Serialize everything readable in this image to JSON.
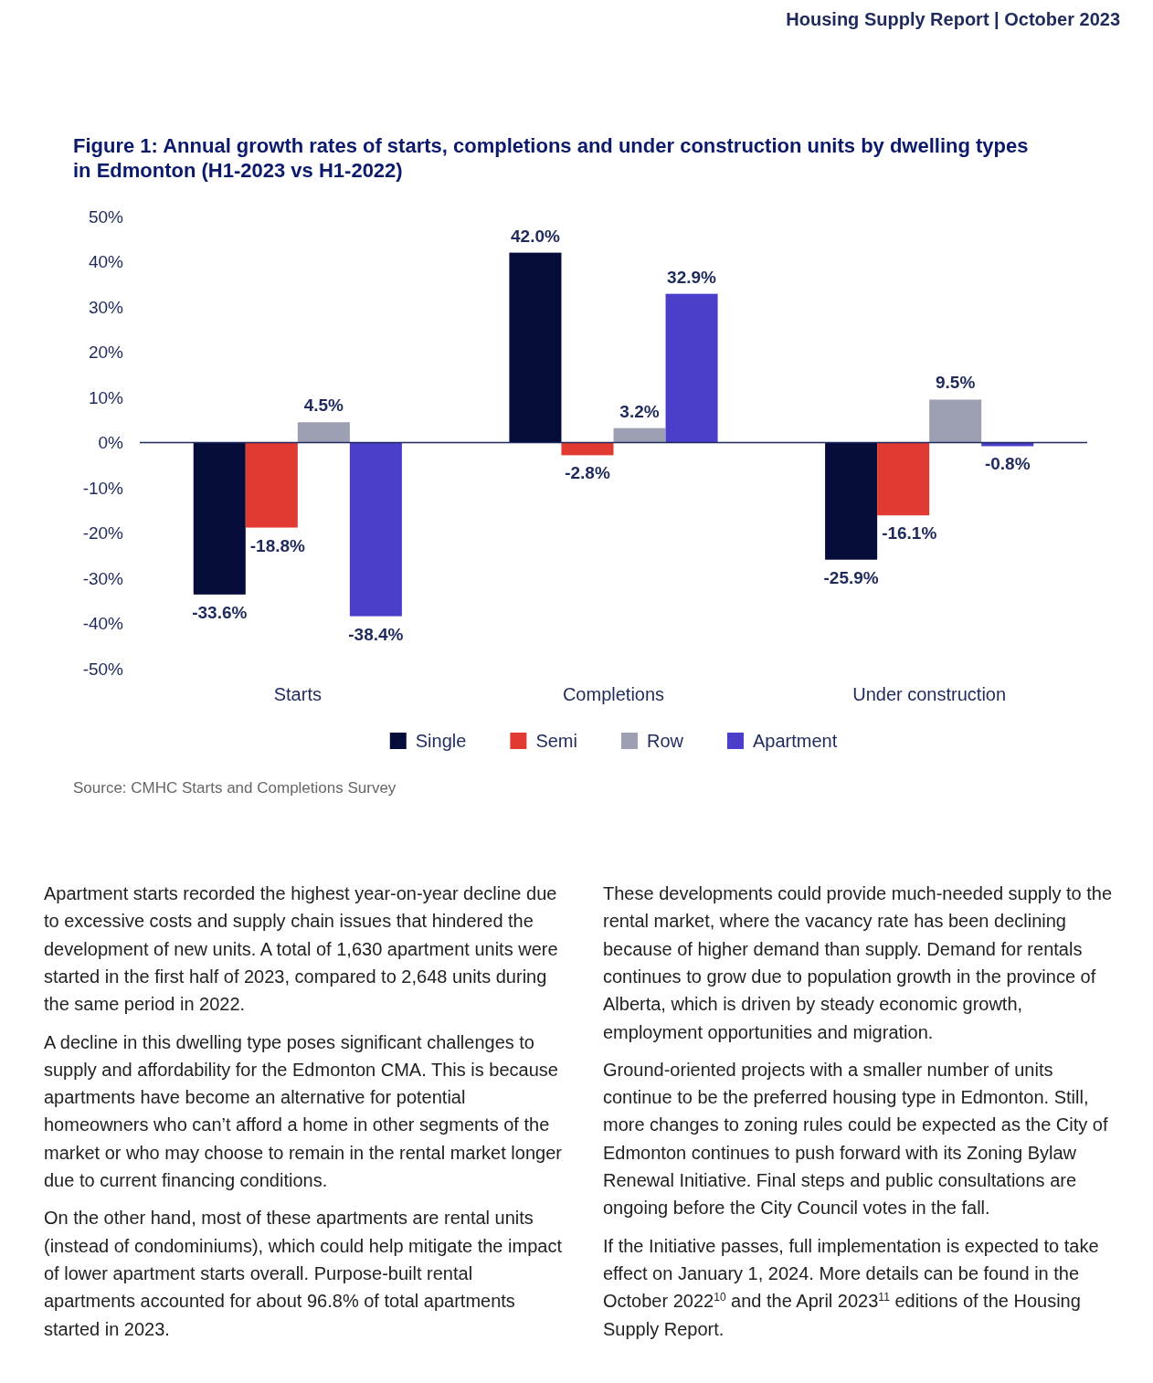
{
  "chart_data": {
    "type": "bar",
    "title": "Figure 1: Annual growth rates of starts, completions and under construction units by dwelling types in Edmonton (H1-2023 vs H1-2022)",
    "categories": [
      "Starts",
      "Completions",
      "Under construction"
    ],
    "series": [
      {
        "name": "Single",
        "color": "#050c3a",
        "values": [
          -33.6,
          42.0,
          -25.9
        ],
        "value_labels": [
          "-33.6%",
          "42.0%",
          "-25.9%"
        ]
      },
      {
        "name": "Semi",
        "color": "#e03a33",
        "values": [
          -18.8,
          -2.8,
          -16.1
        ],
        "value_labels": [
          "-18.8%",
          "-2.8%",
          "-16.1%"
        ]
      },
      {
        "name": "Row",
        "color": "#9d9fb3",
        "values": [
          4.5,
          3.2,
          9.5
        ],
        "value_labels": [
          "4.5%",
          "3.2%",
          "9.5%"
        ]
      },
      {
        "name": "Apartment",
        "color": "#4a3ecb",
        "values": [
          -38.4,
          32.9,
          -0.8
        ],
        "value_labels": [
          "-38.4%",
          "32.9%",
          "-0.8%"
        ]
      }
    ],
    "ylim": [
      -50,
      50
    ],
    "yticks": [
      {
        "value": -50,
        "label": "-50%"
      },
      {
        "value": -40,
        "label": "-40%"
      },
      {
        "value": -30,
        "label": "-30%"
      },
      {
        "value": -20,
        "label": "-20%"
      },
      {
        "value": -10,
        "label": "-10%"
      },
      {
        "value": 0,
        "label": "0%"
      },
      {
        "value": 10,
        "label": "10%"
      },
      {
        "value": 20,
        "label": "20%"
      },
      {
        "value": 30,
        "label": "30%"
      },
      {
        "value": 40,
        "label": "40%"
      },
      {
        "value": 50,
        "label": "50%"
      }
    ],
    "grid": false,
    "legend": "bottom",
    "annotations": [
      "Housing Supply Report | October 2023",
      "Source: CMHC Starts and Completions Survey",
      "Apartment starts recorded the highest year-on-year decline due to excessive costs and supply chain issues that hindered the development of new units. A total of 1,630 apartment units were started in the first half of 2023, compared to 2,648 units during the same period in 2022.",
      "A decline in this dwelling type poses significant challenges to supply and affordability for the Edmonton CMA. This is because apartments have become an alternative for potential homeowners who can’t afford a home in other segments of the market or who may choose to remain in the rental market longer due to current financing conditions.",
      "On the other hand, most of these apartments are rental units (instead of condominiums), which could help mitigate the impact of lower apartment starts overall. Purpose-built rental apartments accounted for about 96.8% of total apartments started in 2023.",
      "These developments could provide much-needed supply to the rental market, where the vacancy rate has been declining because of higher demand than supply. Demand for rentals continues to grow due to population growth in the province of Alberta, which is driven by steady economic growth, employment opportunities and migration.",
      "Ground-oriented projects with a smaller number of units continue to be the preferred housing type in Edmonton. Still, more changes to zoning rules could be expected as the City of Edmonton continues to push forward with its Zoning Bylaw Renewal Initiative. Final steps and public consultations are ongoing before the City Council votes in the fall.",
      "If the Initiative passes, full implementation is expected to take effect on January 1, 2024. More details can be found in the October 2022$^{10}$ and the April 2023$^{11}$ editions of the Housing Supply Report."
    ]
  }
}
